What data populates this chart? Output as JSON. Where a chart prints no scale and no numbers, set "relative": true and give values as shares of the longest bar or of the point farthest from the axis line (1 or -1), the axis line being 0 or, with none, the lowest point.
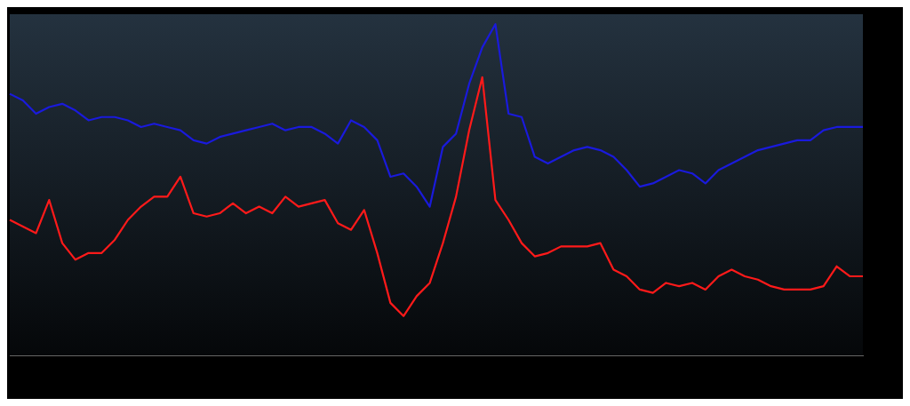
{
  "chart_data": {
    "type": "line",
    "relative": true,
    "grid": false,
    "legend": false,
    "marker": "none",
    "line_style": "solid",
    "categories": [
      null,
      null,
      null,
      null,
      null,
      null,
      null,
      null,
      null,
      null,
      null,
      null,
      null,
      null,
      null,
      null,
      null,
      null,
      null,
      null,
      null,
      null,
      null,
      null,
      null,
      null,
      null,
      null,
      null,
      null,
      null,
      null,
      null,
      null,
      null,
      null,
      null,
      null,
      null,
      null,
      null,
      null,
      null,
      null,
      null,
      null,
      null,
      null,
      null,
      null,
      null,
      null,
      null,
      null,
      null,
      null,
      null,
      null,
      null,
      null,
      null,
      null,
      null,
      null,
      null,
      null
    ],
    "series": [
      {
        "color": "#1a1adc",
        "values": [
          0.79,
          0.77,
          0.73,
          0.75,
          0.76,
          0.74,
          0.71,
          0.72,
          0.72,
          0.71,
          0.69,
          0.7,
          0.69,
          0.68,
          0.65,
          0.64,
          0.66,
          0.67,
          0.68,
          0.69,
          0.7,
          0.68,
          0.69,
          0.69,
          0.67,
          0.64,
          0.71,
          0.69,
          0.65,
          0.54,
          0.55,
          0.51,
          0.45,
          0.63,
          0.67,
          0.82,
          0.93,
          1.0,
          0.73,
          0.72,
          0.6,
          0.58,
          0.6,
          0.62,
          0.63,
          0.62,
          0.6,
          0.56,
          0.51,
          0.52,
          0.54,
          0.56,
          0.55,
          0.52,
          0.56,
          0.58,
          0.6,
          0.62,
          0.63,
          0.64,
          0.65,
          0.65,
          0.68,
          0.69,
          0.69,
          0.69
        ]
      },
      {
        "color": "#ff1a1a",
        "values": [
          0.41,
          0.39,
          0.37,
          0.47,
          0.34,
          0.29,
          0.31,
          0.31,
          0.35,
          0.41,
          0.45,
          0.48,
          0.48,
          0.54,
          0.43,
          0.42,
          0.43,
          0.46,
          0.43,
          0.45,
          0.43,
          0.48,
          0.45,
          0.46,
          0.47,
          0.4,
          0.38,
          0.44,
          0.31,
          0.16,
          0.12,
          0.18,
          0.22,
          0.34,
          0.48,
          0.68,
          0.84,
          0.47,
          0.41,
          0.34,
          0.3,
          0.31,
          0.33,
          0.33,
          0.33,
          0.34,
          0.26,
          0.24,
          0.2,
          0.19,
          0.22,
          0.21,
          0.22,
          0.2,
          0.24,
          0.26,
          0.24,
          0.23,
          0.21,
          0.2,
          0.2,
          0.2,
          0.21,
          0.27,
          0.24,
          0.24
        ]
      }
    ]
  }
}
